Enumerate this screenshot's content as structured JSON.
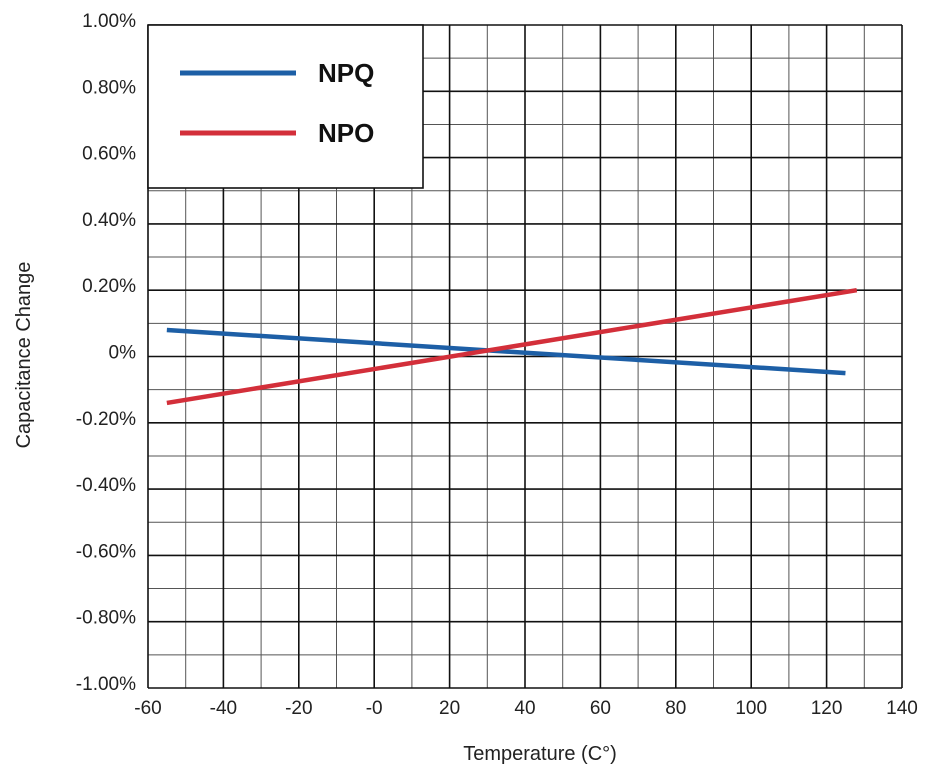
{
  "chart_data": {
    "type": "line",
    "title": "",
    "xlabel": "Temperature (C°)",
    "ylabel": "Capacitance Change",
    "xlim": [
      -60,
      140
    ],
    "ylim": [
      -1.0,
      1.0
    ],
    "x_ticks": [
      -60,
      -40,
      -20,
      0,
      20,
      40,
      60,
      80,
      100,
      120,
      140
    ],
    "x_tick_labels": [
      "-60",
      "-40",
      "-20",
      "-0",
      "20",
      "40",
      "60",
      "80",
      "100",
      "120",
      "140"
    ],
    "y_ticks": [
      1.0,
      0.8,
      0.6,
      0.4,
      0.2,
      0.0,
      -0.2,
      -0.4,
      -0.6,
      -0.8,
      -1.0
    ],
    "y_tick_labels": [
      "1.00%",
      "0.80%",
      "0.60%",
      "0.40%",
      "0.20%",
      "0%",
      "-0.20%",
      "-0.40%",
      "-0.60%",
      "-0.80%",
      "-1.00%"
    ],
    "grid": true,
    "legend_position": "top-left",
    "series": [
      {
        "name": "NPQ",
        "color": "#1d5fa6",
        "x": [
          -55,
          125
        ],
        "y": [
          0.08,
          -0.05
        ]
      },
      {
        "name": "NPO",
        "color": "#d32f3a",
        "x": [
          -55,
          128
        ],
        "y": [
          -0.14,
          0.2
        ]
      }
    ]
  }
}
